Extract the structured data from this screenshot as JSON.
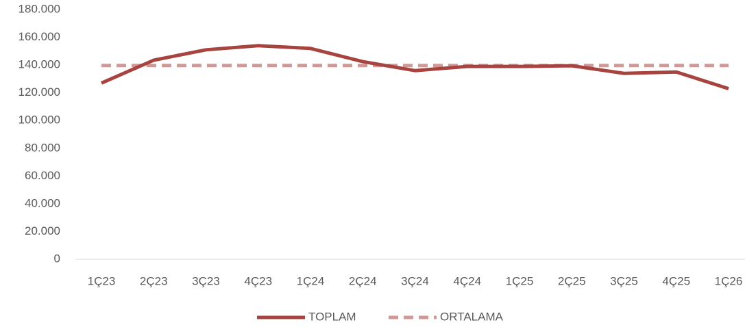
{
  "chart_data": {
    "type": "line",
    "categories": [
      "1Ç23",
      "2Ç23",
      "3Ç23",
      "4Ç23",
      "1Ç24",
      "2Ç24",
      "3Ç24",
      "4Ç24",
      "1Ç25",
      "2Ç25",
      "3Ç25",
      "4Ç25",
      "1Ç26"
    ],
    "series": [
      {
        "name": "TOPLAM",
        "color": "#a84440",
        "dash": false,
        "values": [
          127000,
          143500,
          151000,
          154000,
          152000,
          142500,
          136000,
          139000,
          139000,
          139500,
          134000,
          135000,
          123000
        ]
      },
      {
        "name": "ORTALAMA",
        "color": "#d29896",
        "dash": true,
        "values": [
          139700,
          139700,
          139700,
          139700,
          139700,
          139700,
          139700,
          139700,
          139700,
          139700,
          139700,
          139700,
          139700
        ]
      }
    ],
    "ylim": [
      0,
      180000
    ],
    "yticks": [
      0,
      {
        "value": 20000,
        "label": "20.000"
      },
      {
        "value": 40000,
        "label": "40.000"
      },
      {
        "value": 60000,
        "label": "60.000"
      },
      {
        "value": 80000,
        "label": "80.000"
      },
      {
        "value": 100000,
        "label": "100.000"
      },
      {
        "value": 120000,
        "label": "120.000"
      },
      {
        "value": 140000,
        "label": "140.000"
      },
      {
        "value": 160000,
        "label": "160.000"
      },
      {
        "value": 180000,
        "label": "180.000"
      }
    ],
    "grid": false,
    "legend": "bottom"
  }
}
